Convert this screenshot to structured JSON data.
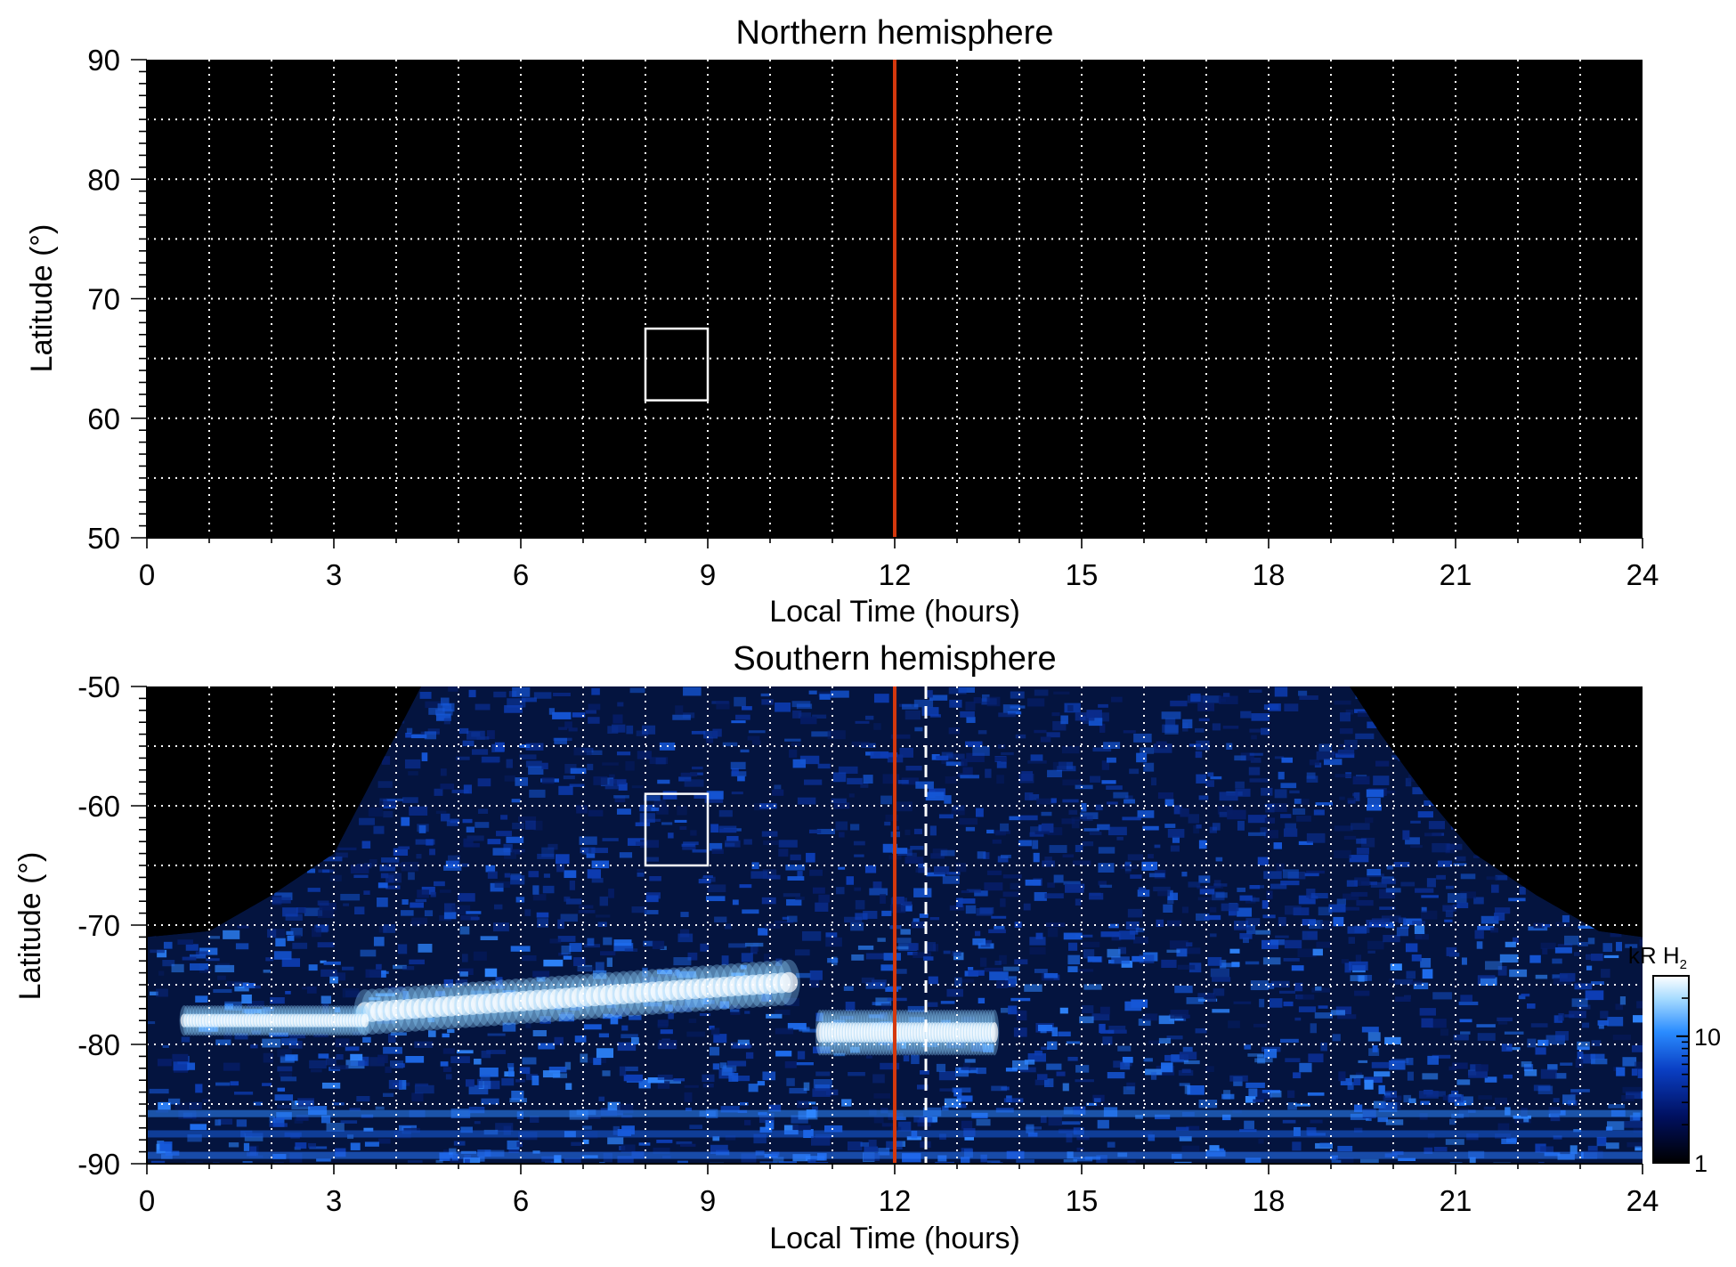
{
  "chart_data": [
    {
      "type": "heatmap",
      "title": "Northern hemisphere",
      "xlabel": "Local Time (hours)",
      "ylabel": "Latitude (°)",
      "xlim": [
        0,
        24
      ],
      "ylim": [
        50,
        90
      ],
      "xticks": [
        0,
        3,
        6,
        9,
        12,
        15,
        18,
        21,
        24
      ],
      "yticks": [
        50,
        60,
        70,
        80,
        90
      ],
      "grid": true,
      "background": "#000000",
      "noon_line": {
        "x": 12,
        "color": "#d4380d"
      },
      "box": {
        "x": [
          8,
          9
        ],
        "y": [
          61.5,
          67.5
        ],
        "color": "#ffffff"
      },
      "emission": "none"
    },
    {
      "type": "heatmap",
      "title": "Southern hemisphere",
      "xlabel": "Local Time (hours)",
      "ylabel": "Latitude (°)",
      "xlim": [
        0,
        24
      ],
      "ylim": [
        -90,
        -50
      ],
      "xticks": [
        0,
        3,
        6,
        9,
        12,
        15,
        18,
        21,
        24
      ],
      "yticks": [
        -90,
        -80,
        -70,
        -60,
        -50
      ],
      "grid": true,
      "background": "#000000",
      "noon_line": {
        "x": 12,
        "color": "#d4380d"
      },
      "dashed_line": {
        "x": 12.5,
        "color": "#ffffff"
      },
      "box": {
        "x": [
          8,
          9
        ],
        "y": [
          -65,
          -59
        ],
        "color": "#ffffff"
      },
      "coverage_boundary": [
        {
          "x": 0,
          "y": -71
        },
        {
          "x": 1,
          "y": -70.5
        },
        {
          "x": 2,
          "y": -67.5
        },
        {
          "x": 3,
          "y": -64
        },
        {
          "x": 3.5,
          "y": -59
        },
        {
          "x": 4,
          "y": -54
        },
        {
          "x": 4.4,
          "y": -50
        },
        {
          "x": 19.3,
          "y": -50
        },
        {
          "x": 19.8,
          "y": -54
        },
        {
          "x": 20.5,
          "y": -59
        },
        {
          "x": 21.3,
          "y": -64
        },
        {
          "x": 22.3,
          "y": -67.5
        },
        {
          "x": 23.3,
          "y": -70.5
        },
        {
          "x": 24,
          "y": -71
        }
      ],
      "bright_features": [
        {
          "name": "main oval dawn arc",
          "x_center": 6.5,
          "x_range": [
            3.5,
            10.3
          ],
          "y_range": [
            -80,
            -74
          ],
          "intensity_kR": 25
        },
        {
          "name": "noon spot",
          "x_center": 12.4,
          "x_range": [
            10.8,
            13.6
          ],
          "y_range": [
            -82,
            -76
          ],
          "intensity_kR": 25
        },
        {
          "name": "dawn tail",
          "x_center": 2.0,
          "x_range": [
            0.6,
            3.5
          ],
          "y_range": [
            -80,
            -76
          ],
          "intensity_kR": 15
        }
      ],
      "colorbar": {
        "label": "kR H",
        "label_subscript": "2",
        "scale": "log",
        "range": [
          1,
          30
        ],
        "ticks": [
          "1",
          "10"
        ],
        "colors": [
          "#000000",
          "#001060",
          "#0a3fc4",
          "#2a8cff",
          "#a8dcff",
          "#ffffff"
        ]
      }
    }
  ]
}
